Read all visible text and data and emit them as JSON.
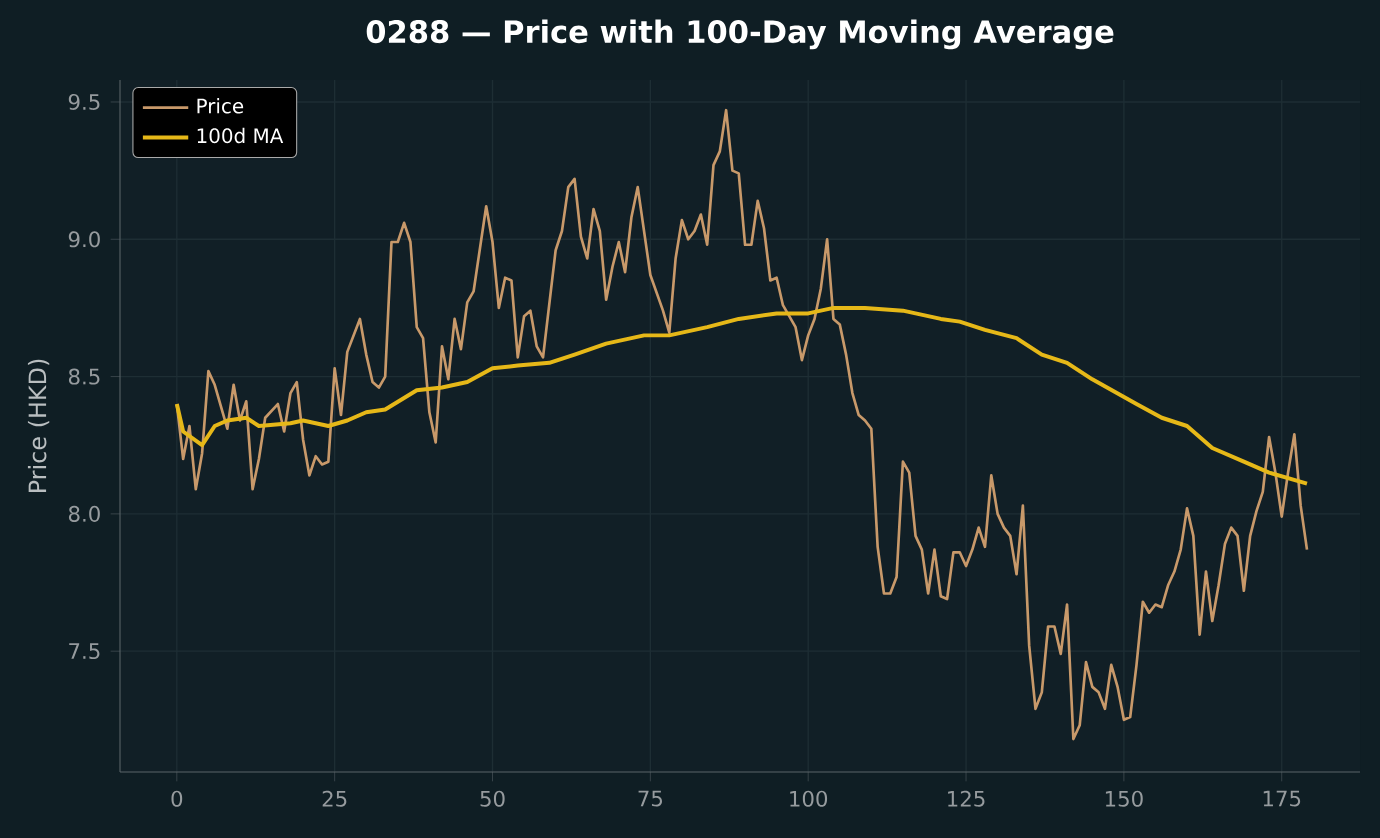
{
  "chart_data": {
    "type": "line",
    "title": "0288 — Price with 100-Day Moving Average",
    "ylabel": "Price (HKD)",
    "xlim": [
      -9,
      187.4
    ],
    "ylim": [
      7.06,
      9.58
    ],
    "xticks": [
      0,
      25,
      50,
      75,
      100,
      125,
      150,
      175
    ],
    "yticks": [
      7.5,
      {
        "value": 8,
        "label": "8.0"
      },
      8.5,
      {
        "value": 9,
        "label": "9.0"
      },
      9.5
    ],
    "grid": true,
    "legend": "top left",
    "marker": "none",
    "line_style": "solid",
    "series": [
      {
        "name": "Price",
        "color": "#c8996a",
        "x": [
          0,
          1,
          2,
          3,
          4,
          5,
          6,
          8,
          9,
          10,
          11,
          12,
          13,
          14,
          16,
          17,
          18,
          19,
          20,
          21,
          22,
          23,
          24,
          25,
          26,
          27,
          29,
          30,
          31,
          32,
          33,
          34,
          35,
          36,
          37,
          38,
          39,
          40,
          41,
          42,
          43,
          44,
          45,
          46,
          47,
          49,
          50,
          51,
          52,
          53,
          54,
          55,
          56,
          57,
          58,
          60,
          61,
          62,
          63,
          64,
          65,
          66,
          67,
          68,
          69,
          70,
          71,
          72,
          73,
          75,
          77,
          78,
          79,
          80,
          81,
          82,
          83,
          84,
          85,
          86,
          87,
          88,
          89,
          90,
          91,
          92,
          93,
          94,
          95,
          96,
          98,
          99,
          100,
          101,
          102,
          103,
          104,
          105,
          106,
          107,
          108,
          109,
          110,
          111,
          112,
          113,
          114,
          115,
          116,
          117,
          118,
          119,
          120,
          121,
          122,
          123,
          124,
          125,
          126,
          127,
          128,
          129,
          130,
          131,
          132,
          133,
          134,
          135,
          136,
          137,
          138,
          139,
          140,
          141,
          142,
          143,
          144,
          145,
          146,
          147,
          148,
          149,
          150,
          151,
          152,
          153,
          154,
          155,
          156,
          157,
          158,
          159,
          160,
          161,
          162,
          163,
          164,
          165,
          166,
          167,
          168,
          169,
          170,
          171,
          172,
          173,
          174,
          175,
          176,
          177,
          178,
          179
        ],
        "values": [
          8.4,
          8.2,
          8.32,
          8.09,
          8.22,
          8.52,
          8.47,
          8.31,
          8.47,
          8.34,
          8.41,
          8.09,
          8.2,
          8.35,
          8.4,
          8.3,
          8.44,
          8.48,
          8.27,
          8.14,
          8.21,
          8.18,
          8.19,
          8.53,
          8.36,
          8.59,
          8.71,
          8.58,
          8.48,
          8.46,
          8.5,
          8.99,
          8.99,
          9.06,
          8.99,
          8.68,
          8.64,
          8.37,
          8.26,
          8.61,
          8.49,
          8.71,
          8.6,
          8.77,
          8.81,
          9.12,
          8.99,
          8.75,
          8.86,
          8.85,
          8.57,
          8.72,
          8.74,
          8.61,
          8.57,
          8.96,
          9.03,
          9.19,
          9.22,
          9.01,
          8.93,
          9.11,
          9.03,
          8.78,
          8.9,
          8.99,
          8.88,
          9.08,
          9.19,
          8.87,
          8.74,
          8.66,
          8.93,
          9.07,
          9.0,
          9.03,
          9.09,
          8.98,
          9.27,
          9.32,
          9.47,
          9.25,
          9.24,
          8.98,
          8.98,
          9.14,
          9.04,
          8.85,
          8.86,
          8.76,
          8.68,
          8.56,
          8.65,
          8.71,
          8.82,
          9.0,
          8.71,
          8.69,
          8.58,
          8.44,
          8.36,
          8.34,
          8.31,
          7.88,
          7.71,
          7.71,
          7.77,
          8.19,
          8.15,
          7.92,
          7.87,
          7.71,
          7.87,
          7.7,
          7.69,
          7.86,
          7.86,
          7.81,
          7.87,
          7.95,
          7.88,
          8.14,
          8.0,
          7.95,
          7.92,
          7.78,
          8.03,
          7.52,
          7.29,
          7.35,
          7.59,
          7.59,
          7.49,
          7.67,
          7.18,
          7.23,
          7.46,
          7.37,
          7.35,
          7.29,
          7.45,
          7.37,
          7.25,
          7.26,
          7.45,
          7.68,
          7.64,
          7.67,
          7.66,
          7.74,
          7.79,
          7.87,
          8.02,
          7.92,
          7.56,
          7.79,
          7.61,
          7.74,
          7.89,
          7.95,
          7.92,
          7.72,
          7.92,
          8.01,
          8.08,
          8.28,
          8.15,
          7.99,
          8.15,
          8.29,
          8.03,
          7.87
        ]
      },
      {
        "name": "100d MA",
        "color": "#e6b818",
        "x": [
          0,
          1,
          4,
          6,
          8,
          11,
          13,
          18,
          20,
          24,
          27,
          30,
          33,
          38,
          42,
          46,
          50,
          54,
          59,
          63,
          68,
          74,
          78,
          84,
          89,
          95,
          100,
          104,
          109,
          115,
          121,
          124,
          128,
          133,
          137,
          141,
          145,
          152,
          156,
          160,
          164,
          169,
          173,
          179
        ],
        "values": [
          8.4,
          8.3,
          8.25,
          8.32,
          8.34,
          8.35,
          8.32,
          8.33,
          8.34,
          8.32,
          8.34,
          8.37,
          8.38,
          8.45,
          8.46,
          8.48,
          8.53,
          8.54,
          8.55,
          8.58,
          8.62,
          8.65,
          8.65,
          8.68,
          8.71,
          8.73,
          8.73,
          8.75,
          8.75,
          8.74,
          8.71,
          8.7,
          8.67,
          8.64,
          8.58,
          8.55,
          8.49,
          8.4,
          8.35,
          8.32,
          8.24,
          8.19,
          8.15,
          8.11
        ]
      }
    ]
  }
}
